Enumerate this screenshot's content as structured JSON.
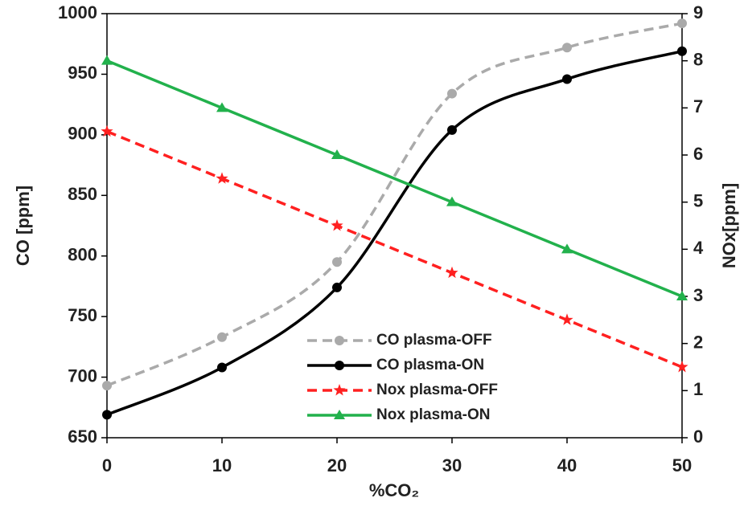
{
  "chart_data": {
    "type": "line",
    "x_label": "%CO₂",
    "y_label": "CO [ppm]",
    "y2_label": "NOx[ppm]",
    "x": [
      0,
      10,
      20,
      30,
      40,
      50
    ],
    "xlim": [
      0,
      50
    ],
    "xticks": [
      0,
      10,
      20,
      30,
      40,
      50
    ],
    "ylim": [
      650,
      1000
    ],
    "yticks": [
      650,
      700,
      750,
      800,
      850,
      900,
      950,
      1000
    ],
    "y2lim": [
      0,
      9
    ],
    "y2ticks": [
      0,
      1,
      2,
      3,
      4,
      5,
      6,
      7,
      8,
      9
    ],
    "series": [
      {
        "name": "CO plasma-OFF",
        "color": "#aaaaaa",
        "dash": "dashed",
        "marker": "circle",
        "smooth": true,
        "values": [
          693,
          733,
          795,
          934,
          972,
          992
        ]
      },
      {
        "name": "CO plasma-ON",
        "color": "#000000",
        "dash": "solid",
        "marker": "circle",
        "smooth": true,
        "values": [
          669,
          708,
          774,
          904,
          946,
          969
        ]
      },
      {
        "name": "Nox plasma-OFF",
        "color": "#ff2020",
        "dash": "dashed",
        "marker": "star",
        "smooth": false,
        "axis": "y2",
        "values": [
          6.5,
          5.5,
          4.5,
          3.5,
          2.5,
          1.5
        ]
      },
      {
        "name": "Nox plasma-ON",
        "color": "#22b14c",
        "dash": "solid",
        "marker": "triangle",
        "smooth": false,
        "axis": "y2",
        "values": [
          8,
          7,
          6,
          5,
          4,
          3
        ]
      }
    ]
  }
}
